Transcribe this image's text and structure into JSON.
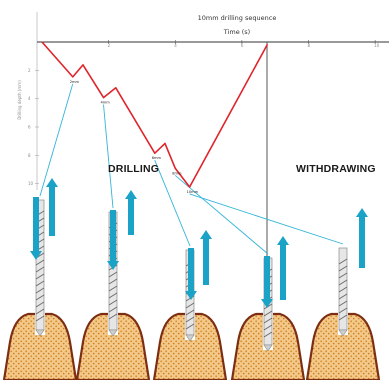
{
  "chart_data": {
    "type": "line",
    "title": "10mm drilling sequence",
    "xlabel": "Time (s)",
    "ylabel": "Drilling depth (mm)",
    "x_ticks": [
      "2",
      "4",
      "6",
      "8",
      "10"
    ],
    "y_ticks": [
      "2",
      "4",
      "6",
      "8",
      "10"
    ],
    "grid": false,
    "series": [
      {
        "color": "#e0242b",
        "x": [
          0,
          1.5,
          2,
          3,
          3.6,
          5.5,
          6,
          6.5,
          7.2,
          11
        ],
        "y": [
          0,
          3.2,
          2.1,
          5.1,
          4.2,
          10.2,
          9.3,
          11.6,
          13.3,
          0.2
        ]
      }
    ],
    "point_labels": [
      "2mm",
      "4mm",
      "6mm",
      "8mm",
      "10mm"
    ]
  },
  "phases": {
    "drilling": "DRILLING",
    "withdrawing": "WITHDRAWING"
  },
  "colors": {
    "curve": "#e0242b",
    "arrow": "#1aa3c6",
    "leader": "#33b5d9",
    "bone_fill": "#f3c98b",
    "bone_dots": "#d98b27",
    "bone_outline": "#7d2e12"
  }
}
